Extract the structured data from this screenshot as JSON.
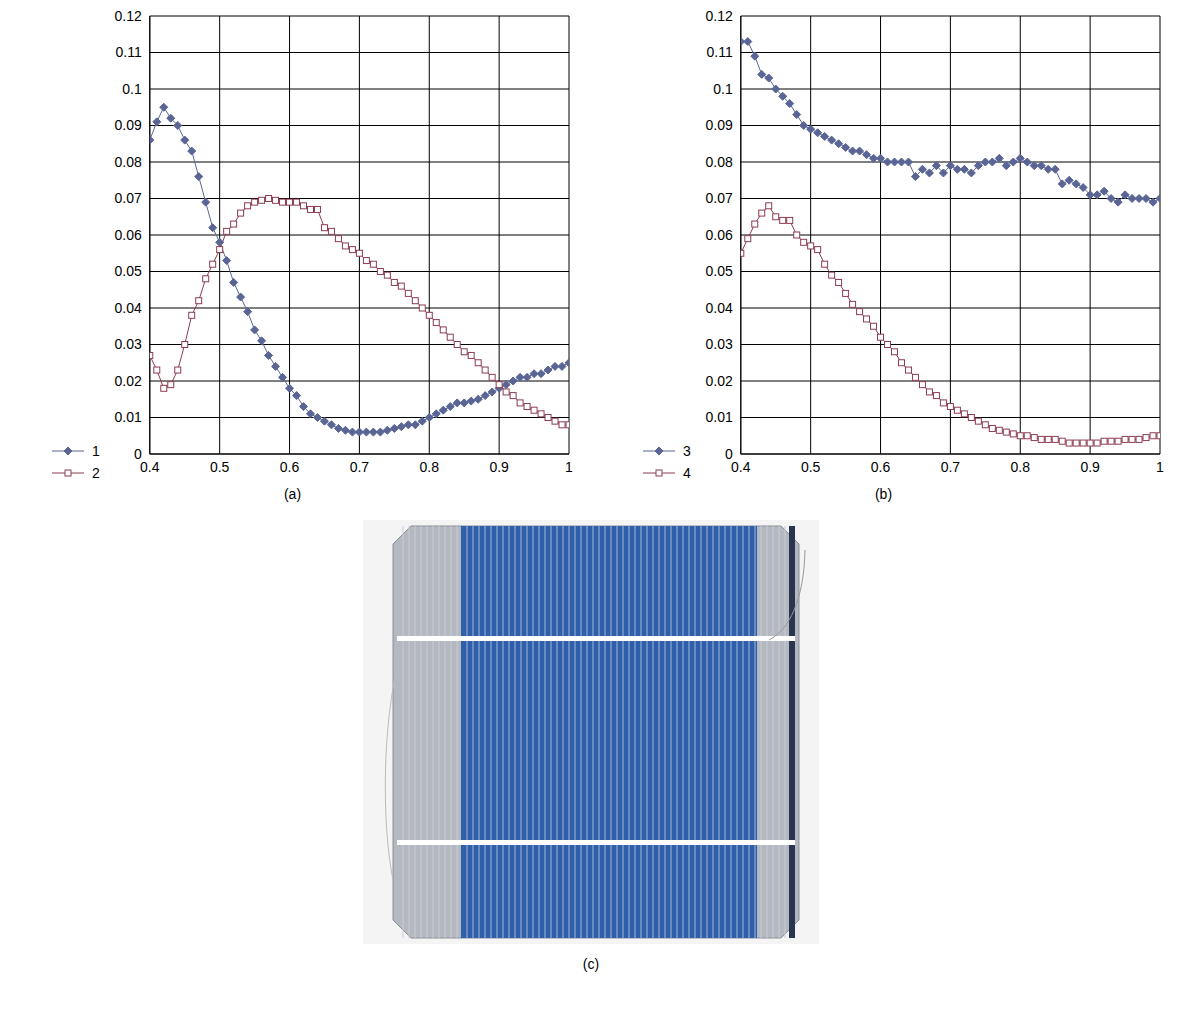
{
  "chart_data": [
    {
      "type": "line",
      "title": "(a)",
      "x": [
        0.4,
        0.41,
        0.42,
        0.43,
        0.44,
        0.45,
        0.46,
        0.47,
        0.48,
        0.49,
        0.5,
        0.51,
        0.52,
        0.53,
        0.54,
        0.55,
        0.56,
        0.57,
        0.58,
        0.59,
        0.6,
        0.61,
        0.62,
        0.63,
        0.64,
        0.65,
        0.66,
        0.67,
        0.68,
        0.69,
        0.7,
        0.71,
        0.72,
        0.73,
        0.74,
        0.75,
        0.76,
        0.77,
        0.78,
        0.79,
        0.8,
        0.81,
        0.82,
        0.83,
        0.84,
        0.85,
        0.86,
        0.87,
        0.88,
        0.89,
        0.9,
        0.91,
        0.92,
        0.93,
        0.94,
        0.95,
        0.96,
        0.97,
        0.98,
        0.99,
        1
      ],
      "series": [
        {
          "name": "1",
          "color": "#5a6596",
          "marker": "diamond",
          "values": [
            0.086,
            0.091,
            0.095,
            0.092,
            0.09,
            0.086,
            0.083,
            0.076,
            0.069,
            0.062,
            0.058,
            0.053,
            0.047,
            0.043,
            0.039,
            0.034,
            0.031,
            0.027,
            0.024,
            0.021,
            0.018,
            0.016,
            0.013,
            0.011,
            0.01,
            0.009,
            0.008,
            0.007,
            0.0065,
            0.006,
            0.006,
            0.006,
            0.006,
            0.006,
            0.0065,
            0.007,
            0.0075,
            0.008,
            0.008,
            0.009,
            0.01,
            0.011,
            0.012,
            0.013,
            0.014,
            0.014,
            0.0145,
            0.015,
            0.016,
            0.017,
            0.018,
            0.019,
            0.02,
            0.021,
            0.021,
            0.022,
            0.022,
            0.023,
            0.024,
            0.024,
            0.025
          ]
        },
        {
          "name": "2",
          "color": "#8c3c50",
          "marker": "square",
          "values": [
            0.027,
            0.023,
            0.018,
            0.019,
            0.023,
            0.03,
            0.038,
            0.042,
            0.048,
            0.052,
            0.056,
            0.061,
            0.063,
            0.066,
            0.068,
            0.069,
            0.0695,
            0.07,
            0.0695,
            0.069,
            0.069,
            0.069,
            0.068,
            0.067,
            0.067,
            0.062,
            0.061,
            0.059,
            0.057,
            0.056,
            0.055,
            0.053,
            0.052,
            0.05,
            0.049,
            0.047,
            0.046,
            0.044,
            0.042,
            0.04,
            0.038,
            0.036,
            0.034,
            0.032,
            0.03,
            0.028,
            0.027,
            0.025,
            0.023,
            0.021,
            0.019,
            0.017,
            0.016,
            0.014,
            0.013,
            0.012,
            0.011,
            0.01,
            0.009,
            0.008,
            0.008
          ]
        }
      ],
      "xlim": [
        0.4,
        1
      ],
      "xticks": [
        0.4,
        0.5,
        0.6,
        0.7,
        0.8,
        0.9,
        1
      ],
      "ylim": [
        0,
        0.12
      ],
      "yticks": [
        0,
        0.01,
        0.02,
        0.03,
        0.04,
        0.05,
        0.06,
        0.07,
        0.08,
        0.09,
        0.1,
        0.11,
        0.12
      ],
      "grid": true,
      "legend": "bottom-left"
    },
    {
      "type": "line",
      "title": "(b)",
      "x": [
        0.4,
        0.41,
        0.42,
        0.43,
        0.44,
        0.45,
        0.46,
        0.47,
        0.48,
        0.49,
        0.5,
        0.51,
        0.52,
        0.53,
        0.54,
        0.55,
        0.56,
        0.57,
        0.58,
        0.59,
        0.6,
        0.61,
        0.62,
        0.63,
        0.64,
        0.65,
        0.66,
        0.67,
        0.68,
        0.69,
        0.7,
        0.71,
        0.72,
        0.73,
        0.74,
        0.75,
        0.76,
        0.77,
        0.78,
        0.79,
        0.8,
        0.81,
        0.82,
        0.83,
        0.84,
        0.85,
        0.86,
        0.87,
        0.88,
        0.89,
        0.9,
        0.91,
        0.92,
        0.93,
        0.94,
        0.95,
        0.96,
        0.97,
        0.98,
        0.99,
        1
      ],
      "series": [
        {
          "name": "3",
          "color": "#5a6596",
          "marker": "diamond",
          "values": [
            0.113,
            0.113,
            0.109,
            0.104,
            0.103,
            0.1,
            0.098,
            0.096,
            0.093,
            0.09,
            0.089,
            0.088,
            0.087,
            0.086,
            0.085,
            0.084,
            0.083,
            0.083,
            0.082,
            0.081,
            0.081,
            0.08,
            0.08,
            0.08,
            0.08,
            0.076,
            0.078,
            0.077,
            0.079,
            0.077,
            0.079,
            0.078,
            0.078,
            0.077,
            0.079,
            0.08,
            0.08,
            0.081,
            0.079,
            0.08,
            0.081,
            0.08,
            0.079,
            0.079,
            0.078,
            0.078,
            0.074,
            0.075,
            0.074,
            0.073,
            0.071,
            0.071,
            0.072,
            0.07,
            0.069,
            0.071,
            0.07,
            0.07,
            0.07,
            0.069,
            0.07
          ]
        },
        {
          "name": "4",
          "color": "#8c3c50",
          "marker": "square",
          "values": [
            0.055,
            0.059,
            0.063,
            0.066,
            0.068,
            0.065,
            0.064,
            0.064,
            0.06,
            0.058,
            0.057,
            0.056,
            0.052,
            0.049,
            0.047,
            0.044,
            0.041,
            0.039,
            0.037,
            0.035,
            0.032,
            0.03,
            0.028,
            0.025,
            0.023,
            0.021,
            0.019,
            0.017,
            0.016,
            0.014,
            0.013,
            0.012,
            0.011,
            0.01,
            0.009,
            0.008,
            0.007,
            0.0065,
            0.006,
            0.0055,
            0.005,
            0.005,
            0.0045,
            0.004,
            0.004,
            0.004,
            0.0035,
            0.003,
            0.003,
            0.003,
            0.003,
            0.003,
            0.0035,
            0.0035,
            0.0035,
            0.004,
            0.004,
            0.004,
            0.0045,
            0.005,
            0.005
          ]
        }
      ],
      "xlim": [
        0.4,
        1
      ],
      "xticks": [
        0.4,
        0.5,
        0.6,
        0.7,
        0.8,
        0.9,
        1
      ],
      "ylim": [
        0,
        0.12
      ],
      "yticks": [
        0,
        0.01,
        0.02,
        0.03,
        0.04,
        0.05,
        0.06,
        0.07,
        0.08,
        0.09,
        0.1,
        0.11,
        0.12
      ],
      "grid": true,
      "legend": "bottom-left"
    }
  ],
  "photo": {
    "title": "(c)"
  }
}
